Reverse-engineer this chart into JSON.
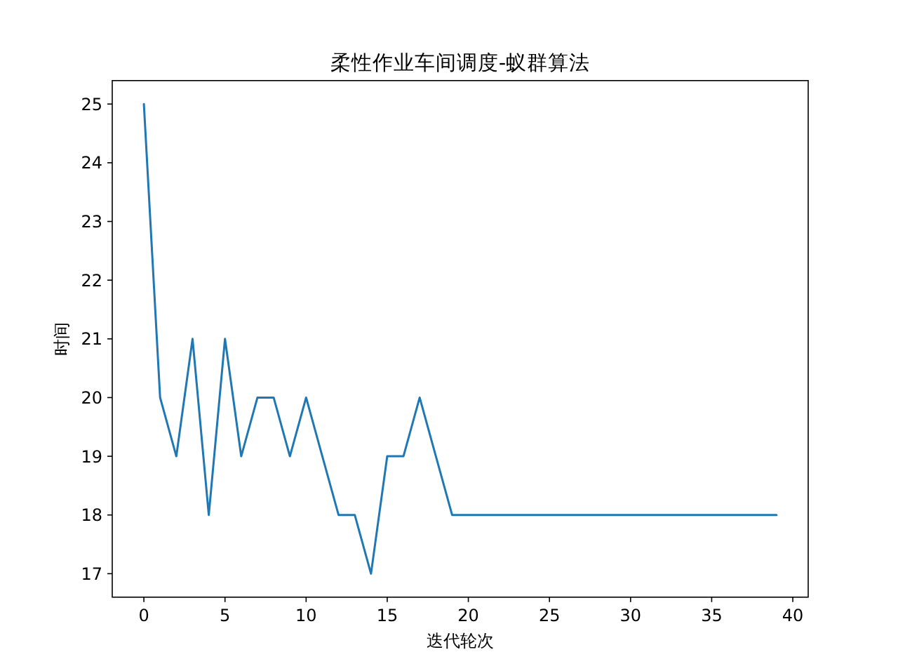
{
  "chart_data": {
    "type": "line",
    "title": "柔性作业车间调度-蚁群算法",
    "xlabel": "迭代轮次",
    "ylabel": "时间",
    "x": [
      0,
      1,
      2,
      3,
      4,
      5,
      6,
      7,
      8,
      9,
      10,
      11,
      12,
      13,
      14,
      15,
      16,
      17,
      18,
      19,
      20,
      21,
      22,
      23,
      24,
      25,
      26,
      27,
      28,
      29,
      30,
      31,
      32,
      33,
      34,
      35,
      36,
      37,
      38,
      39
    ],
    "series": [
      {
        "color": "#1f77b4",
        "values": [
          25,
          20,
          19,
          21,
          18,
          21,
          19,
          20,
          20,
          19,
          20,
          19,
          18,
          18,
          17,
          19,
          19,
          20,
          19,
          18,
          18,
          18,
          18,
          18,
          18,
          18,
          18,
          18,
          18,
          18,
          18,
          18,
          18,
          18,
          18,
          18,
          18,
          18,
          18,
          18
        ]
      }
    ],
    "xlim": [
      -1.95,
      40.95
    ],
    "ylim": [
      16.6,
      25.4
    ],
    "xticks": [
      0,
      5,
      10,
      15,
      20,
      25,
      30,
      35,
      40
    ],
    "yticks": [
      17,
      18,
      19,
      20,
      21,
      22,
      23,
      24,
      25
    ],
    "grid": false,
    "marker": "none",
    "line_style": "solid"
  }
}
